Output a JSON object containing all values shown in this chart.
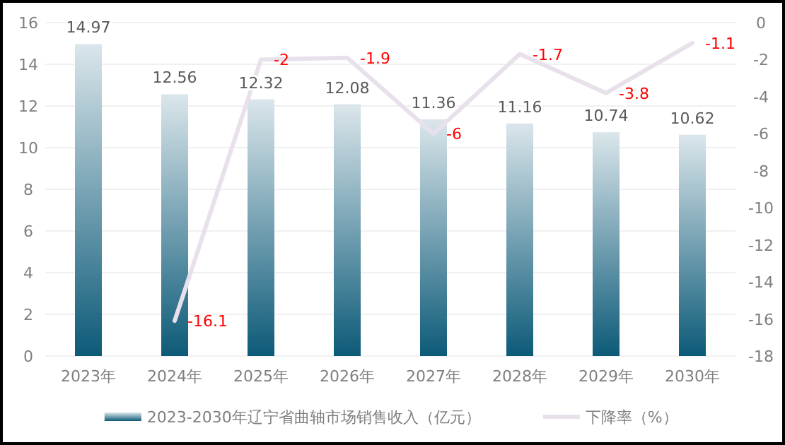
{
  "chart_data": {
    "type": "bar",
    "categories": [
      "2023年",
      "2024年",
      "2025年",
      "2026年",
      "2027年",
      "2028年",
      "2029年",
      "2030年"
    ],
    "series": [
      {
        "name": "2023-2030年辽宁省曲轴市场销售收入（亿元）",
        "color": "#0c5a78",
        "values": [
          14.97,
          12.56,
          12.32,
          12.08,
          11.36,
          11.16,
          10.74,
          10.62
        ]
      },
      {
        "name": "下降率（%）",
        "type": "line",
        "axis": "y2",
        "color": "#e8e1ec",
        "values": [
          null,
          -16.1,
          -2,
          -1.9,
          -6,
          -1.7,
          -3.8,
          -1.1
        ]
      }
    ],
    "ylim": [
      0,
      16
    ],
    "yticks": [
      0,
      2,
      4,
      6,
      8,
      10,
      12,
      14,
      16
    ],
    "y2lim": [
      -18,
      0
    ],
    "y2ticks": [
      -18,
      -16,
      -14,
      -12,
      -10,
      -8,
      -6,
      -4,
      -2,
      0
    ],
    "data_labels": true,
    "grid": "y",
    "legend": "bottom",
    "marker": "none",
    "line_style": "solid"
  }
}
